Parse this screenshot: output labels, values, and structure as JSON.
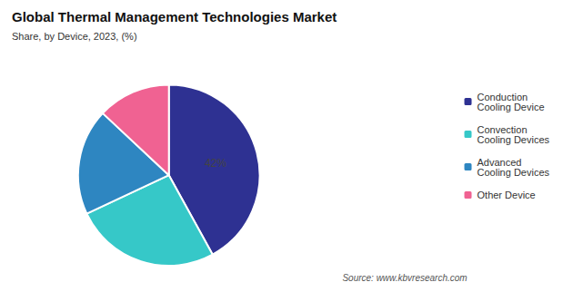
{
  "chart_data": {
    "type": "pie",
    "title": "Global Thermal Management Technologies Market",
    "subtitle": "Share, by Device, 2023, (%)",
    "annotations": [
      "Source: www.kbvresearch.com"
    ],
    "categories": [
      "Conduction\nCooling Device",
      "Convection\nCooling Devices",
      "Advanced\nCooling Devices",
      "Other Device"
    ],
    "values": [
      42,
      26,
      19,
      13
    ],
    "value_labels": [
      "42%",
      null,
      null,
      null
    ],
    "colors": [
      "#2e3192",
      "#36c8c8",
      "#2e86c1",
      "#f06292"
    ],
    "legend": "right"
  }
}
